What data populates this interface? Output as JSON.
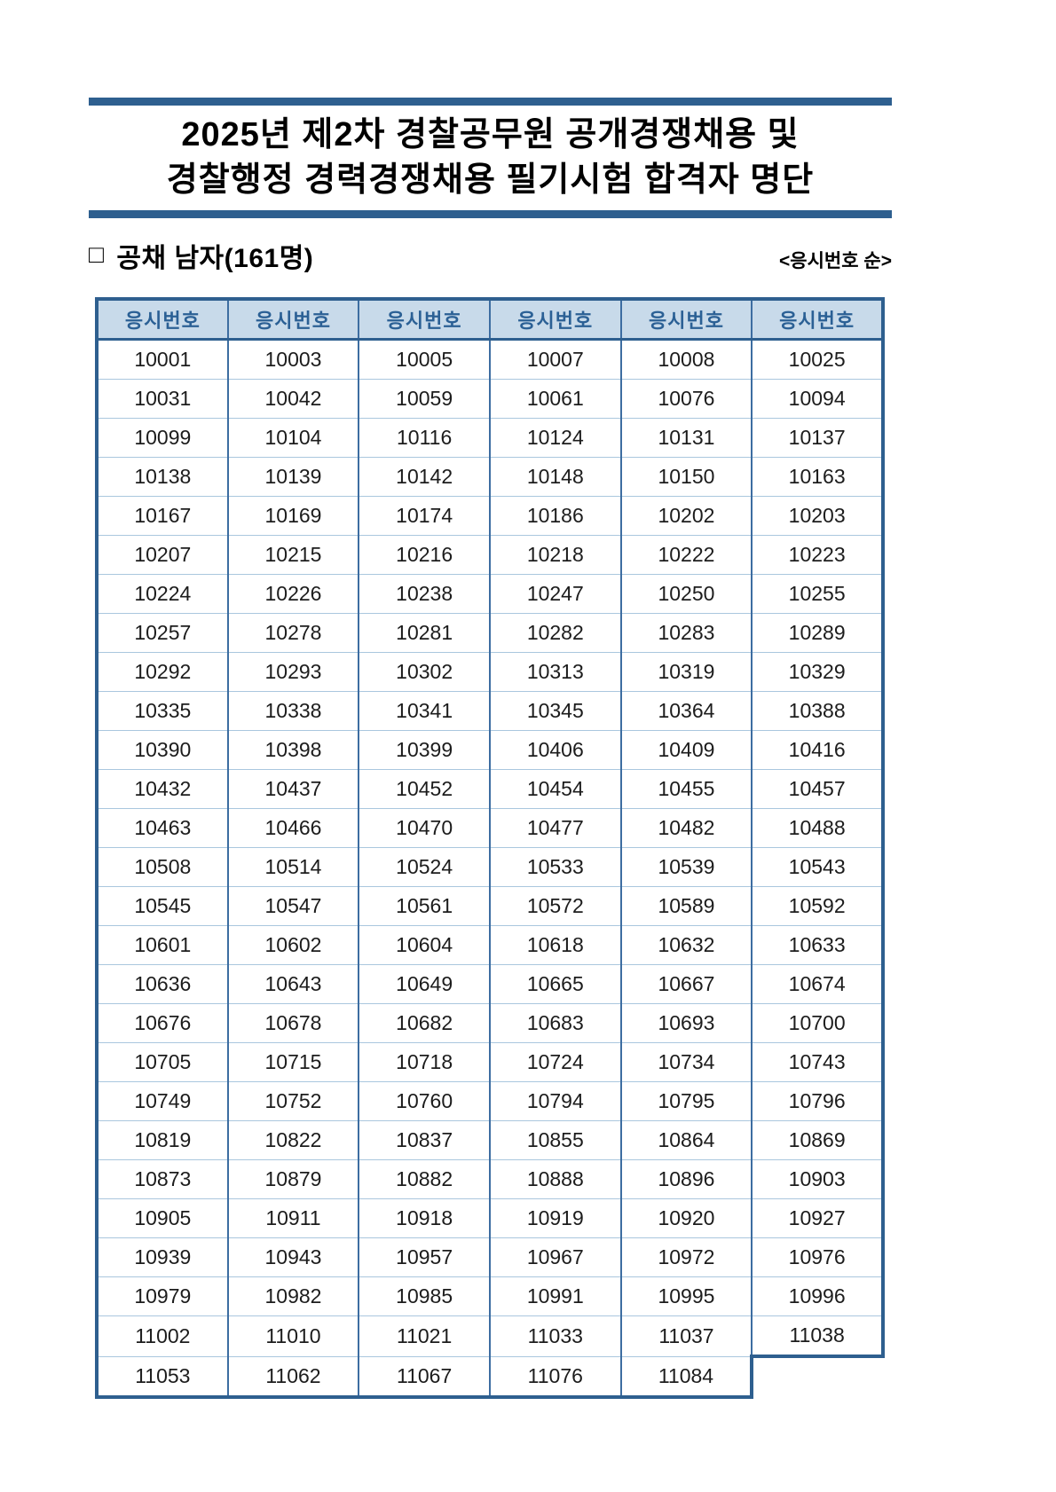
{
  "colors": {
    "accent_bar": "#2e5f8f",
    "table_outer_border": "#2e5f8f",
    "column_line": "#3d6da1",
    "row_line": "#aac7de",
    "header_background": "#c8daea",
    "header_text": "#2b6095"
  },
  "header": {
    "title_line1": "2025년 제2차 경찰공무원 공개경쟁채용 및",
    "title_line2": "경찰행정 경력경쟁채용 필기시험 합격자 명단"
  },
  "section": {
    "bullet": "□",
    "heading": "공채 남자(161명)",
    "sort_note": "<응시번호 순>"
  },
  "table": {
    "columns": [
      "응시번호",
      "응시번호",
      "응시번호",
      "응시번호",
      "응시번호",
      "응시번호"
    ],
    "rows": [
      [
        "10001",
        "10003",
        "10005",
        "10007",
        "10008",
        "10025"
      ],
      [
        "10031",
        "10042",
        "10059",
        "10061",
        "10076",
        "10094"
      ],
      [
        "10099",
        "10104",
        "10116",
        "10124",
        "10131",
        "10137"
      ],
      [
        "10138",
        "10139",
        "10142",
        "10148",
        "10150",
        "10163"
      ],
      [
        "10167",
        "10169",
        "10174",
        "10186",
        "10202",
        "10203"
      ],
      [
        "10207",
        "10215",
        "10216",
        "10218",
        "10222",
        "10223"
      ],
      [
        "10224",
        "10226",
        "10238",
        "10247",
        "10250",
        "10255"
      ],
      [
        "10257",
        "10278",
        "10281",
        "10282",
        "10283",
        "10289"
      ],
      [
        "10292",
        "10293",
        "10302",
        "10313",
        "10319",
        "10329"
      ],
      [
        "10335",
        "10338",
        "10341",
        "10345",
        "10364",
        "10388"
      ],
      [
        "10390",
        "10398",
        "10399",
        "10406",
        "10409",
        "10416"
      ],
      [
        "10432",
        "10437",
        "10452",
        "10454",
        "10455",
        "10457"
      ],
      [
        "10463",
        "10466",
        "10470",
        "10477",
        "10482",
        "10488"
      ],
      [
        "10508",
        "10514",
        "10524",
        "10533",
        "10539",
        "10543"
      ],
      [
        "10545",
        "10547",
        "10561",
        "10572",
        "10589",
        "10592"
      ],
      [
        "10601",
        "10602",
        "10604",
        "10618",
        "10632",
        "10633"
      ],
      [
        "10636",
        "10643",
        "10649",
        "10665",
        "10667",
        "10674"
      ],
      [
        "10676",
        "10678",
        "10682",
        "10683",
        "10693",
        "10700"
      ],
      [
        "10705",
        "10715",
        "10718",
        "10724",
        "10734",
        "10743"
      ],
      [
        "10749",
        "10752",
        "10760",
        "10794",
        "10795",
        "10796"
      ],
      [
        "10819",
        "10822",
        "10837",
        "10855",
        "10864",
        "10869"
      ],
      [
        "10873",
        "10879",
        "10882",
        "10888",
        "10896",
        "10903"
      ],
      [
        "10905",
        "10911",
        "10918",
        "10919",
        "10920",
        "10927"
      ],
      [
        "10939",
        "10943",
        "10957",
        "10967",
        "10972",
        "10976"
      ],
      [
        "10979",
        "10982",
        "10985",
        "10991",
        "10995",
        "10996"
      ],
      [
        "11002",
        "11010",
        "11021",
        "11033",
        "11037",
        "11038"
      ],
      [
        "11053",
        "11062",
        "11067",
        "11076",
        "11084",
        null
      ]
    ]
  }
}
